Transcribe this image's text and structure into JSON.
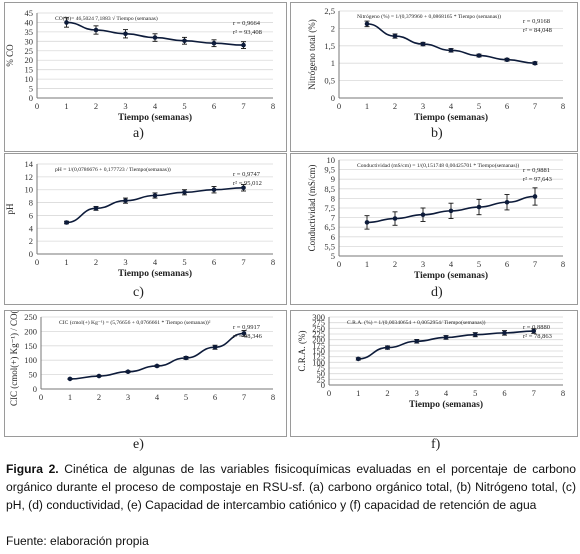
{
  "chart_data": [
    {
      "panel": "a)",
      "type": "line",
      "xlabel": "Tiempo (semanas)",
      "ylabel": "% CO",
      "xlim": [
        0,
        8
      ],
      "ylim": [
        0,
        45
      ],
      "xticks": [
        0,
        1,
        2,
        3,
        4,
        5,
        6,
        7,
        8
      ],
      "yticks": [
        0,
        5,
        10,
        15,
        20,
        25,
        30,
        35,
        40,
        45
      ],
      "x": [
        1,
        2,
        3,
        4,
        5,
        6,
        7
      ],
      "y": [
        40.0,
        36.0,
        34.0,
        32.0,
        30.3,
        29.0,
        28.0
      ],
      "errors": [
        2.5,
        2.2,
        2.2,
        2.0,
        1.8,
        1.8,
        1.8
      ],
      "equation": "CO(%)= 46,5024 7,1883 √ Tiempo (semanas)",
      "stats": [
        "r = 0,9664",
        "r² = 93,408"
      ]
    },
    {
      "panel": "b)",
      "type": "line",
      "xlabel": "Tiempo (semanas)",
      "ylabel": "Nitrógeno total (%)",
      "xlim": [
        0,
        8
      ],
      "ylim": [
        0,
        2.5
      ],
      "xticks": [
        0,
        1,
        2,
        3,
        4,
        5,
        6,
        7,
        8
      ],
      "yticks": [
        "0",
        "0,5",
        "1",
        "1,5",
        "2",
        "2,5"
      ],
      "ytick_values": [
        0,
        0.5,
        1,
        1.5,
        2,
        2.5
      ],
      "x": [
        1,
        2,
        3,
        4,
        5,
        6,
        7
      ],
      "y": [
        2.13,
        1.78,
        1.55,
        1.37,
        1.22,
        1.1,
        1.0
      ],
      "errors": [
        0.08,
        0.06,
        0.05,
        0.05,
        0.04,
        0.04,
        0.04
      ],
      "equation": "Nitrógeno (%) = 1/(0,379960 + 0,0868165 * Tiempo (semanas))",
      "stats": [
        "r = 0,9168",
        "r² = 84,048"
      ]
    },
    {
      "panel": "c)",
      "type": "line",
      "xlabel": "Tiempo (semanas)",
      "ylabel": "pH",
      "xlim": [
        0,
        8
      ],
      "ylim": [
        0,
        14
      ],
      "xticks": [
        0,
        1,
        2,
        3,
        4,
        5,
        6,
        7,
        8
      ],
      "yticks": [
        0,
        2,
        4,
        6,
        8,
        10,
        12,
        14
      ],
      "x": [
        1,
        2,
        3,
        4,
        5,
        6,
        7
      ],
      "y": [
        4.9,
        7.1,
        8.3,
        9.1,
        9.6,
        10.0,
        10.3
      ],
      "errors": [
        0.2,
        0.3,
        0.4,
        0.4,
        0.4,
        0.5,
        0.5
      ],
      "equation": "pH = 1/(0,0786676 + 0,177723 / Tiempo(semanas))",
      "stats": [
        "r = 0,9747",
        "r² = 95,012"
      ]
    },
    {
      "panel": "d)",
      "type": "line",
      "xlabel": "Tiempo (semanas)",
      "ylabel": "Conductividad (mS/cm)",
      "xlim": [
        0,
        8
      ],
      "ylim": [
        5,
        10
      ],
      "xticks": [
        0,
        1,
        2,
        3,
        4,
        5,
        6,
        7,
        8
      ],
      "yticks": [
        "5",
        "5,5",
        "6",
        "6,5",
        "7",
        "7,5",
        "8",
        "8,5",
        "9",
        "9,5",
        "10"
      ],
      "ytick_values": [
        5,
        5.5,
        6,
        6.5,
        7,
        7.5,
        8,
        8.5,
        9,
        9.5,
        10
      ],
      "x": [
        1,
        2,
        3,
        4,
        5,
        6,
        7
      ],
      "y": [
        6.75,
        6.95,
        7.15,
        7.35,
        7.55,
        7.8,
        8.1
      ],
      "errors": [
        0.35,
        0.35,
        0.35,
        0.4,
        0.4,
        0.4,
        0.45
      ],
      "equation": "Conductividad (mS/cm) = 1/(0,151748 0,00425701 * Tiempo(semanas))",
      "stats": [
        "r = 0,9881",
        "r² = 97,643"
      ]
    },
    {
      "panel": "e)",
      "type": "line",
      "xlabel": "",
      "ylabel": "CIC (cmol(+) Kg⁻¹) / CO(%)",
      "xlim": [
        0,
        8
      ],
      "ylim": [
        0,
        250
      ],
      "xticks": [
        0,
        1,
        2,
        3,
        4,
        5,
        6,
        7,
        8
      ],
      "yticks": [
        0,
        50,
        100,
        150,
        200,
        250
      ],
      "x": [
        1,
        2,
        3,
        4,
        5,
        6,
        7
      ],
      "y": [
        35,
        45,
        60,
        80,
        108,
        145,
        193
      ],
      "errors": [
        2,
        2,
        3,
        3,
        5,
        7,
        10
      ],
      "equation": "CIC (cmol(+) Kg⁻¹) = (5,76656 + 0,0766661 * Tiempo (semanas))²",
      "stats": [
        "r = 0,9917",
        "r² = 98,346"
      ]
    },
    {
      "panel": "f)",
      "type": "line",
      "xlabel": "Tiempo (semanas)",
      "ylabel": "C.R.A. (%)",
      "xlim": [
        0,
        8
      ],
      "ylim": [
        0,
        300
      ],
      "xticks": [
        0,
        1,
        2,
        3,
        4,
        5,
        6,
        7,
        8
      ],
      "yticks": [
        0,
        25,
        50,
        75,
        100,
        125,
        150,
        175,
        200,
        225,
        250,
        275,
        300
      ],
      "x": [
        1,
        2,
        3,
        4,
        5,
        6,
        7
      ],
      "y": [
        115,
        165,
        193,
        210,
        222,
        230,
        238
      ],
      "errors": [
        5,
        7,
        8,
        8,
        9,
        10,
        10
      ],
      "equation": "C.R.A. (%) = 1/(0,00340654 + 0,0052954/ Tiempo(semanas))",
      "stats": [
        "r = 0,8880",
        "r² = 78,863"
      ]
    }
  ],
  "caption": {
    "figure_label": "Figura 2.",
    "text": "Cinética de algunas de las variables fisicoquímicas evaluadas en el porcentaje de carbono orgánico durante el proceso de compostaje en RSU-sf. (a) carbono orgánico total, (b) Nitrógeno total, (c) pH, (d) conductividad, (e) Capacidad de intercambio catiónico y (f) capacidad de retención de agua"
  },
  "source": "Fuente: elaboración propia"
}
